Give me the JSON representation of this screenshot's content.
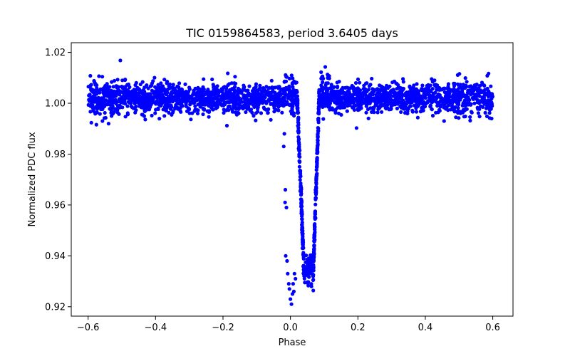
{
  "chart_data": {
    "type": "scatter",
    "title": "TIC 0159864583, period 3.6405 days",
    "xlabel": "Phase",
    "ylabel": "Normalized PDC flux",
    "xlim": [
      -0.65,
      0.66
    ],
    "ylim": [
      0.9163,
      1.0238
    ],
    "xticks": [
      -0.6,
      -0.4,
      -0.2,
      0.0,
      0.2,
      0.4,
      0.6
    ],
    "xtick_labels": [
      "−0.6",
      "−0.4",
      "−0.2",
      "0.0",
      "0.2",
      "0.4",
      "0.6"
    ],
    "yticks": [
      0.92,
      0.94,
      0.96,
      0.98,
      1.0,
      1.02
    ],
    "ytick_labels": [
      "0.92",
      "0.94",
      "0.96",
      "0.98",
      "1.00",
      "1.02"
    ],
    "grid": false,
    "marker_color": "#0000ff",
    "series": [
      {
        "phase_range": [
          -0.6,
          0.6
        ],
        "baseline_flux": 1.002,
        "transit": {
          "ingress_start": 0.02,
          "flat_start": 0.04,
          "flat_end": 0.068,
          "egress_end": 0.085,
          "min_flux": 0.935
        },
        "outliers": [
          {
            "x": -0.02,
            "y": 0.983
          },
          {
            "x": -0.018,
            "y": 0.988
          },
          {
            "x": -0.015,
            "y": 0.966
          },
          {
            "x": -0.016,
            "y": 0.961
          },
          {
            "x": -0.012,
            "y": 0.959
          },
          {
            "x": -0.014,
            "y": 0.94
          },
          {
            "x": -0.01,
            "y": 0.938
          },
          {
            "x": -0.008,
            "y": 0.933
          },
          {
            "x": -0.005,
            "y": 0.929
          },
          {
            "x": -0.003,
            "y": 0.927
          },
          {
            "x": 0.0,
            "y": 0.923
          },
          {
            "x": 0.003,
            "y": 0.921
          },
          {
            "x": 0.006,
            "y": 0.925
          },
          {
            "x": 0.008,
            "y": 0.929
          },
          {
            "x": 0.012,
            "y": 0.933
          },
          {
            "x": 0.015,
            "y": 0.931
          },
          {
            "x": 0.01,
            "y": 0.926
          }
        ]
      }
    ]
  }
}
